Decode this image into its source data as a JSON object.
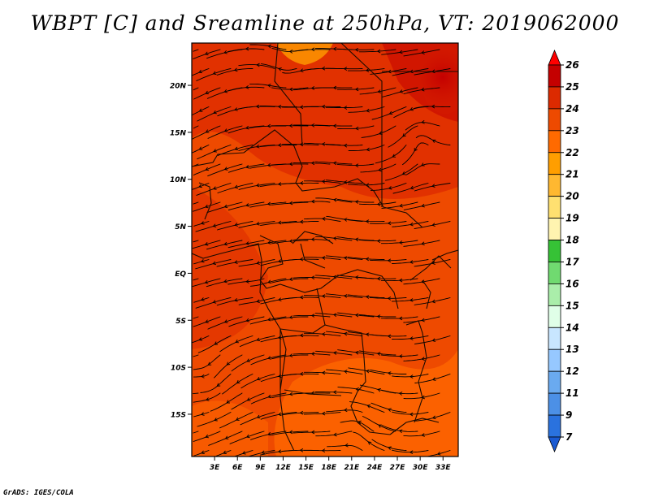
{
  "title": "WBPT [C] and Sreamline at 250hPa, VT: 2019062000",
  "footer": "GrADS: IGES/COLA",
  "map": {
    "lat_ticks": [
      "20N",
      "15N",
      "10N",
      "5N",
      "EQ",
      "5S",
      "10S",
      "15S"
    ],
    "lon_ticks": [
      "3E",
      "6E",
      "9E",
      "12E",
      "15E",
      "18E",
      "21E",
      "24E",
      "27E",
      "30E",
      "33E"
    ],
    "lat_range": [
      -19.5,
      24.5
    ],
    "lon_range": [
      0,
      35
    ]
  },
  "colorbar": {
    "levels": [
      "26",
      "25",
      "24",
      "23",
      "22",
      "21",
      "20",
      "19",
      "18",
      "17",
      "16",
      "15",
      "14",
      "13",
      "12",
      "11",
      "9",
      "7"
    ],
    "colors": [
      "#ff0000",
      "#c40000",
      "#dc2a00",
      "#ee4a00",
      "#ff6a00",
      "#ff9e00",
      "#ffb830",
      "#ffe070",
      "#fff4b0",
      "#36c236",
      "#70da70",
      "#aaeeaa",
      "#e0ffe8",
      "#c8e6ff",
      "#96c8ff",
      "#6aaaf0",
      "#4c90e6",
      "#2a72de",
      "#1a5ad2"
    ]
  }
}
